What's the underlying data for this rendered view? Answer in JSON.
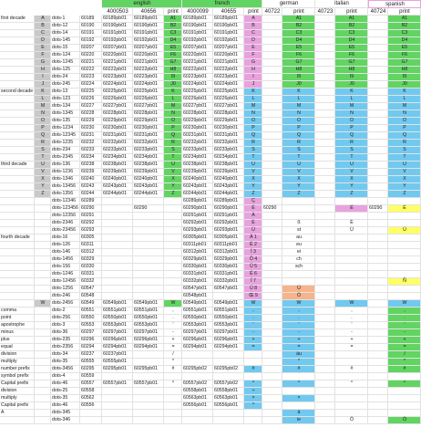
{
  "header": {
    "languages": [
      "english",
      "french",
      "german",
      "italian",
      "spanish"
    ],
    "codes": [
      "4000503",
      "40656",
      "print",
      "4000099",
      "40655",
      "print",
      "40722",
      "print",
      "40723",
      "print",
      "40724",
      "print"
    ]
  },
  "rows": [
    [
      "first decade",
      "A",
      "dots-1",
      "60189",
      "60189pb01",
      "60189pb01",
      "A1",
      "60189pb01",
      "60189pb01",
      "A",
      null,
      "A1",
      null,
      "A1",
      null,
      "A1"
    ],
    [
      null,
      "B",
      "dots-12",
      "60190",
      "60190pb01",
      "60190pb01",
      "B2",
      "60190pb01",
      "60190pb01",
      "B",
      null,
      "B2",
      null,
      "B2",
      null,
      "B2"
    ],
    [
      null,
      "C",
      "dots-14",
      "60191",
      "60191pb01",
      "60191pb01",
      "C3",
      "60191pb01",
      "60191pb01",
      "C",
      null,
      "C3",
      null,
      "C3",
      null,
      "C3"
    ],
    [
      null,
      "D",
      "dots-145",
      "60192",
      "60192pb01",
      "60192pb01",
      "D4",
      "60192pb01",
      "60192pb01",
      "D",
      null,
      "D4",
      null,
      "D4",
      null,
      "D4"
    ],
    [
      null,
      "E",
      "dots-15",
      "60207",
      "60207pb01",
      "60207pb01",
      "E5",
      "60207pb01",
      "60207pb01",
      "E",
      null,
      "E5",
      null,
      "E5",
      null,
      "E5"
    ],
    [
      null,
      "F",
      "dots-124",
      "60220",
      "60220pb01",
      "60220pb01",
      "F6",
      "60220pb01",
      "60220pb01",
      "F",
      null,
      "F6",
      null,
      "F6",
      null,
      "F6"
    ],
    [
      null,
      "G",
      "dots-1245",
      "60221",
      "60221pb01",
      "60221pb01",
      "G7",
      "60221pb01",
      "60221pb01",
      "G",
      null,
      "G7",
      null,
      "G7",
      null,
      "G7"
    ],
    [
      null,
      "H",
      "dots-125",
      "60222",
      "60222pb01",
      "60222pb01",
      "H8",
      "60222pb01",
      "60222pb01",
      "H",
      null,
      "H8",
      null,
      "H8",
      null,
      "H8"
    ],
    [
      null,
      "I",
      "dots-24",
      "60223",
      "60223pb01",
      "60223pb01",
      "I9",
      "60223pb01",
      "60223pb01",
      "I",
      null,
      "I9",
      null,
      "I9",
      null,
      "I9"
    ],
    [
      null,
      "J",
      "dots-245",
      "60224",
      "60224pb01",
      "60224pb01",
      "J0",
      "60224pb01",
      "60224pb01",
      "J",
      null,
      "J0",
      null,
      "J0",
      null,
      "J0"
    ],
    [
      "second decade",
      "K",
      "dots-13",
      "60225",
      "60225pb01",
      "60225pb01",
      "K",
      "60225pb01",
      "60225pb01",
      "K",
      null,
      "K",
      null,
      "K",
      null,
      "K"
    ],
    [
      null,
      "L",
      "dots-123",
      "60226",
      "60226pb01",
      "60226pb01",
      "L",
      "60226pb01",
      "60226pb01",
      "L",
      null,
      "L",
      null,
      "L",
      null,
      "L"
    ],
    [
      null,
      "M",
      "dots-134",
      "60227",
      "60227pb01",
      "60227pb01",
      "M",
      "60227pb01",
      "60227pb01",
      "M",
      null,
      "M",
      null,
      "M",
      null,
      "M"
    ],
    [
      null,
      "N",
      "dots-1345",
      "60228",
      "60228pb01",
      "60228pb01",
      "N",
      "60228pb01",
      "60228pb01",
      "N",
      null,
      "N",
      null,
      "N",
      null,
      "N"
    ],
    [
      null,
      "O",
      "dots-135",
      "60229",
      "60229pb01",
      "60229pb01",
      "O",
      "60229pb01",
      "60229pb01",
      "O",
      null,
      "O",
      null,
      "O",
      null,
      "O"
    ],
    [
      null,
      "P",
      "dots-1234",
      "60230",
      "60230pb01",
      "60230pb01",
      "P",
      "60230pb01",
      "60230pb01",
      "P",
      null,
      "P",
      null,
      "P",
      null,
      "P"
    ],
    [
      null,
      "Q",
      "dots-12345",
      "60231",
      "60231pb01",
      "60231pb01",
      "Q",
      "60231pb01",
      "60231pb01",
      "Q",
      null,
      "Q",
      null,
      "Q",
      null,
      "Q"
    ],
    [
      null,
      "R",
      "dots-1235",
      "60232",
      "60232pb01",
      "60232pb01",
      "R",
      "60232pb01",
      "60232pb01",
      "R",
      null,
      "R",
      null,
      "R",
      null,
      "R"
    ],
    [
      null,
      "S",
      "dots-234",
      "60233",
      "60233pb01",
      "60233pb01",
      "S",
      "60233pb01",
      "60233pb01",
      "S",
      null,
      "S",
      null,
      "S",
      null,
      "S"
    ],
    [
      null,
      "T",
      "dots-2345",
      "60234",
      "60234pb01",
      "60234pb01",
      "T",
      "60234pb01",
      "60234pb01",
      "T",
      null,
      "T",
      null,
      "T",
      null,
      "T"
    ],
    [
      "third decade",
      "U",
      "dots-136",
      "60238",
      "60238pb01",
      "60238pb01",
      "U",
      "60238pb01",
      "60238pb01",
      "U",
      null,
      "U",
      null,
      "U",
      null,
      "U"
    ],
    [
      null,
      "V",
      "dots-1236",
      "60239",
      "60239pb01",
      "60239pb01",
      "V",
      "60239pb01",
      "60239pb01",
      "V",
      null,
      "V",
      null,
      "V",
      null,
      "V"
    ],
    [
      null,
      "X",
      "dots-1346",
      "60240",
      "60240pb01",
      "60240pb01",
      "X",
      "60240pb01",
      "60240pb01",
      "X",
      null,
      "X",
      null,
      "X",
      null,
      "X"
    ],
    [
      null,
      "Y",
      "dots-13456",
      "60243",
      "60243pb01",
      "60243pb01",
      "Y",
      "60243pb01",
      "60243pb01",
      "Y",
      null,
      "Y",
      null,
      "Y",
      null,
      "Y"
    ],
    [
      null,
      "Z",
      "dots-1356",
      "60244",
      "60244pb01",
      "60244pb01",
      "Z",
      "60244pb01",
      "60244pb01",
      "Z",
      null,
      "Z",
      null,
      "Z",
      null,
      "Z"
    ],
    [
      null,
      null,
      "dots-12346",
      "60289",
      null,
      null,
      null,
      "60289pb01",
      "60289pb01",
      "Ç",
      null,
      null,
      null,
      null,
      null,
      null
    ],
    [
      null,
      null,
      "dots-123456",
      "60290",
      null,
      "60290",
      null,
      "60290pb01",
      "60290pb01",
      "É",
      "60290",
      null,
      null,
      "É",
      "60290",
      "É"
    ],
    [
      null,
      null,
      "dots-12356",
      "60291",
      null,
      null,
      null,
      "60291pb01",
      "60291pb01",
      "À",
      null,
      null,
      null,
      null,
      null,
      null
    ],
    [
      null,
      null,
      "dots-2346",
      "60292",
      null,
      null,
      null,
      "60292pb01",
      "60292pb01",
      "È",
      null,
      "ß",
      null,
      "È",
      null,
      null
    ],
    [
      null,
      null,
      "dots-23456",
      "60293",
      null,
      null,
      null,
      "60293pb01",
      "60293pb01",
      "Ù",
      null,
      "st",
      null,
      "Ù",
      null,
      "Ú"
    ],
    [
      "fourth decade",
      null,
      "dots-16",
      "60305",
      null,
      null,
      null,
      "60305pb01",
      "60305pb01",
      "Â 1",
      null,
      "au",
      null,
      null,
      null,
      null
    ],
    [
      null,
      null,
      "dots-126",
      "60311",
      null,
      null,
      null,
      "60311pb01",
      "60311pb01",
      "Ê 2",
      null,
      "eu",
      null,
      null,
      null,
      null
    ],
    [
      null,
      null,
      "dots-146",
      "60312",
      null,
      null,
      null,
      "60312pb01",
      "60312pb01",
      "Î 3",
      null,
      "ei",
      null,
      null,
      null,
      null
    ],
    [
      null,
      null,
      "dots-1456",
      "60329",
      null,
      null,
      null,
      "60329pb01",
      "60329pb01",
      "Ô 4",
      null,
      "ch",
      null,
      null,
      null,
      null
    ],
    [
      null,
      null,
      "dots-156",
      "60330",
      null,
      null,
      null,
      "60330pb01",
      "60330pb01",
      "Û 5",
      null,
      "sch",
      null,
      null,
      null,
      null
    ],
    [
      null,
      null,
      "dots-1246",
      "60331",
      null,
      null,
      null,
      "60331pb01",
      "60331pb01",
      "Ë 6",
      null,
      null,
      null,
      null,
      null,
      null
    ],
    [
      null,
      null,
      "dots-12456",
      "60332",
      null,
      null,
      null,
      "60332pb01",
      "60332pb01",
      "Ï 7",
      null,
      null,
      null,
      null,
      null,
      "Ñ"
    ],
    [
      null,
      null,
      "dots-1256",
      "60547",
      null,
      null,
      null,
      "60547pb01",
      "60547pb01",
      "Ü 8",
      null,
      "Ü",
      null,
      null,
      null,
      null
    ],
    [
      null,
      null,
      "dots-246",
      "60548",
      null,
      null,
      null,
      "60548pb01",
      null,
      "Œ 9",
      null,
      "Ö",
      null,
      null,
      null,
      null
    ],
    [
      null,
      "W",
      "dots-2456",
      "60549",
      "60549pb01",
      "60549pb01",
      "W",
      "60549pb01",
      "60549pb01",
      "W",
      null,
      "W",
      null,
      "W",
      null,
      "W"
    ],
    [
      "comma",
      null,
      "dots-2",
      "60551",
      "60551pb01",
      "60551pb01",
      ",",
      "60551pb01",
      "60551pb01",
      ",",
      null,
      ",",
      null,
      ",",
      null,
      ","
    ],
    [
      "point",
      null,
      "dots-256",
      "60550",
      "60550pb01",
      "60550pb01",
      ".",
      "60550pb01",
      "60550pb01",
      ".",
      null,
      ".",
      null,
      ".",
      null,
      "."
    ],
    [
      "apostrophe",
      null,
      "dots-3",
      "60553",
      "60553pb01",
      "60553pb01",
      "'",
      "60553pb01",
      "60553pb01",
      "'",
      null,
      "'",
      null,
      "'",
      null,
      "'"
    ],
    [
      "minus",
      null,
      "dots-36",
      "60297",
      "60297pb01",
      "60297pb01",
      "-",
      "60297pb01",
      "60297pb01",
      "-",
      null,
      "-",
      null,
      "-",
      null,
      "-"
    ],
    [
      "plus",
      null,
      "dots-235",
      "60296",
      "60296pb01",
      "60296pb01",
      "+",
      "60296pb01",
      "60296pb01",
      "+",
      null,
      "+",
      null,
      "+",
      null,
      "+"
    ],
    [
      "equal",
      null,
      "dots-2356",
      "60294",
      "60294pb01",
      "60294pb01",
      "=",
      "60294pb01",
      "60294pb01",
      "=",
      null,
      "=",
      null,
      "=",
      null,
      "="
    ],
    [
      "division",
      null,
      "dots-34",
      "60237",
      "60237pb01",
      null,
      "/",
      null,
      null,
      null,
      null,
      "äu",
      null,
      null,
      null,
      "/"
    ],
    [
      "multiply",
      null,
      "dots-35",
      "60555",
      "60555pb01",
      null,
      "*",
      null,
      null,
      null,
      null,
      "*",
      null,
      null,
      null,
      "*"
    ],
    [
      "number prefix",
      null,
      "dots-3456",
      "60295",
      "60295pb01",
      "60295pb01",
      "#",
      "60295pb02",
      "60295pb02",
      "#",
      null,
      "#",
      null,
      "#",
      null,
      "#"
    ],
    [
      "symbol prefix",
      null,
      "dots-4",
      "60559",
      null,
      null,
      null,
      null,
      null,
      null,
      null,
      null,
      null,
      null,
      null,
      null
    ],
    [
      "Capital prefix",
      null,
      "dots-46",
      "60557",
      "60557pb01",
      "60557pb01",
      "^",
      "60557pb02",
      "60557pb02",
      "^",
      null,
      "^",
      null,
      "^",
      null,
      "^"
    ],
    [
      "division",
      null,
      "dots-25",
      "60558",
      null,
      null,
      null,
      "60558pb01",
      "60558pb01",
      "÷",
      null,
      null,
      null,
      null,
      null,
      null
    ],
    [
      "multiply",
      null,
      "dots-35",
      "60562",
      null,
      null,
      null,
      "60563pb01",
      "60563pb01",
      "×",
      null,
      "×",
      null,
      null,
      null,
      null
    ],
    [
      "Capital prefix",
      null,
      "dots-46",
      "60556",
      null,
      null,
      null,
      "60556pb01",
      "60556pb01",
      "^",
      null,
      null,
      null,
      null,
      null,
      null
    ],
    [
      "A",
      null,
      "dots-345",
      null,
      null,
      null,
      null,
      null,
      null,
      null,
      null,
      "ä",
      null,
      null,
      null,
      null
    ],
    [
      null,
      null,
      "dots-346",
      null,
      null,
      null,
      null,
      null,
      null,
      null,
      null,
      "ie",
      null,
      "Ö",
      null,
      "Ö"
    ]
  ]
}
